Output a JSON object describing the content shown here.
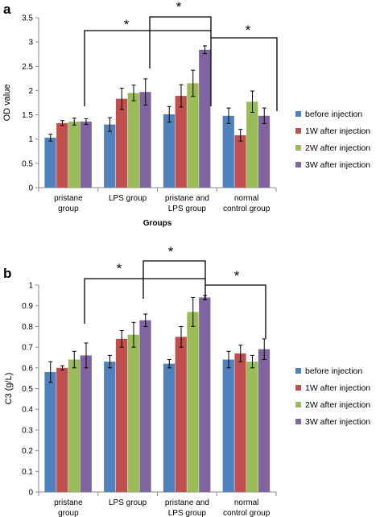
{
  "chart_data": [
    {
      "panel": "a",
      "type": "bar",
      "categories": [
        [
          "pristane",
          "group"
        ],
        [
          "LPS group"
        ],
        [
          "pristane and",
          "LPS group"
        ],
        [
          "normal",
          "control group"
        ]
      ],
      "series": [
        {
          "name": "before injection",
          "color": "#4f81bd",
          "values": [
            1.03,
            1.3,
            1.51,
            1.48
          ],
          "errors": [
            0.07,
            0.14,
            0.16,
            0.16
          ]
        },
        {
          "name": "1W after injection",
          "color": "#c0504d",
          "values": [
            1.33,
            1.83,
            1.89,
            1.08
          ],
          "errors": [
            0.05,
            0.22,
            0.23,
            0.12
          ]
        },
        {
          "name": "2W after injection",
          "color": "#9bbb59",
          "values": [
            1.36,
            1.95,
            2.15,
            1.77
          ],
          "errors": [
            0.07,
            0.16,
            0.27,
            0.22
          ]
        },
        {
          "name": "3W after injection",
          "color": "#8064a2",
          "values": [
            1.36,
            1.97,
            2.84,
            1.48
          ],
          "errors": [
            0.06,
            0.27,
            0.08,
            0.16
          ]
        }
      ],
      "ylabel": "OD value",
      "xlabel": "Groups",
      "ylim": [
        0,
        3.5
      ],
      "yticks": [
        "0",
        "0.5",
        "1",
        "1.5",
        "2",
        "2.5",
        "3",
        "3.5"
      ],
      "grid": false,
      "legend": "right",
      "annotations": [
        "*",
        "*",
        "*"
      ]
    },
    {
      "panel": "b",
      "type": "bar",
      "categories": [
        [
          "pristane",
          "group"
        ],
        [
          "LPS group"
        ],
        [
          "pristane and",
          "LPS group"
        ],
        [
          "normal",
          "control group"
        ]
      ],
      "series": [
        {
          "name": "before injection",
          "color": "#4f81bd",
          "values": [
            0.58,
            0.63,
            0.62,
            0.64
          ],
          "errors": [
            0.05,
            0.03,
            0.02,
            0.04
          ]
        },
        {
          "name": "1W after injection",
          "color": "#c0504d",
          "values": [
            0.6,
            0.74,
            0.75,
            0.67
          ],
          "errors": [
            0.01,
            0.04,
            0.05,
            0.04
          ]
        },
        {
          "name": "2W after injection",
          "color": "#9bbb59",
          "values": [
            0.64,
            0.76,
            0.87,
            0.63
          ],
          "errors": [
            0.04,
            0.06,
            0.07,
            0.03
          ]
        },
        {
          "name": "3W after injection",
          "color": "#8064a2",
          "values": [
            0.66,
            0.83,
            0.94,
            0.69
          ],
          "errors": [
            0.06,
            0.03,
            0.01,
            0.05
          ]
        }
      ],
      "ylabel": "C3 (g/L)",
      "xlabel": "Groups",
      "ylim": [
        0,
        1
      ],
      "yticks": [
        "0",
        "0.1",
        "0.2",
        "0.3",
        "0.4",
        "0.5",
        "0.6",
        "0.7",
        "0.8",
        "0.9",
        "1"
      ],
      "grid": false,
      "legend": "right",
      "annotations": [
        "*",
        "*",
        "*"
      ]
    }
  ]
}
